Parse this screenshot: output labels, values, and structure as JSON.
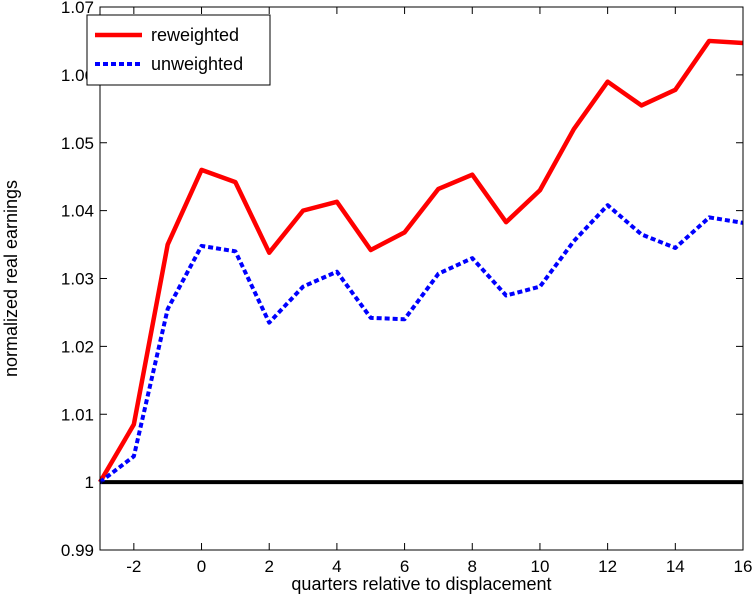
{
  "chart_data": {
    "type": "line",
    "title": "",
    "xlabel": "quarters relative to displacement",
    "ylabel": "normalized real earnings",
    "xlim": [
      -3,
      16
    ],
    "ylim": [
      0.99,
      1.07
    ],
    "x_ticks": [
      -2,
      0,
      2,
      4,
      6,
      8,
      10,
      12,
      14,
      16
    ],
    "y_ticks": [
      0.99,
      1,
      1.01,
      1.02,
      1.03,
      1.04,
      1.05,
      1.06,
      1.07
    ],
    "x_tick_labels": [
      "-2",
      "0",
      "2",
      "4",
      "6",
      "8",
      "10",
      "12",
      "14",
      "16"
    ],
    "y_tick_labels": [
      "0.99",
      "1",
      "1.01",
      "1.02",
      "1.03",
      "1.04",
      "1.05",
      "1.06",
      "1.07"
    ],
    "grid": false,
    "legend": {
      "position": "top-left"
    },
    "x": [
      -3,
      -2,
      -1,
      0,
      1,
      2,
      3,
      4,
      5,
      6,
      7,
      8,
      9,
      10,
      11,
      12,
      13,
      14,
      15,
      16
    ],
    "series": [
      {
        "name": "reweighted",
        "color": "#ff0000",
        "style": "solid",
        "values": [
          1.0,
          1.0085,
          1.035,
          1.046,
          1.0442,
          1.0338,
          1.04,
          1.0413,
          1.0342,
          1.0368,
          1.0432,
          1.0453,
          1.0383,
          1.043,
          1.052,
          1.059,
          1.0555,
          1.0578,
          1.065,
          1.0647
        ]
      },
      {
        "name": "unweighted",
        "color": "#0000ff",
        "style": "dashed",
        "values": [
          1.0,
          1.0038,
          1.0255,
          1.0348,
          1.034,
          1.0235,
          1.0288,
          1.031,
          1.0242,
          1.024,
          1.0307,
          1.033,
          1.0275,
          1.0288,
          1.0355,
          1.0408,
          1.0365,
          1.0345,
          1.039,
          1.0382
        ]
      }
    ],
    "reference_line": {
      "y": 1.0,
      "color": "#000000"
    }
  }
}
